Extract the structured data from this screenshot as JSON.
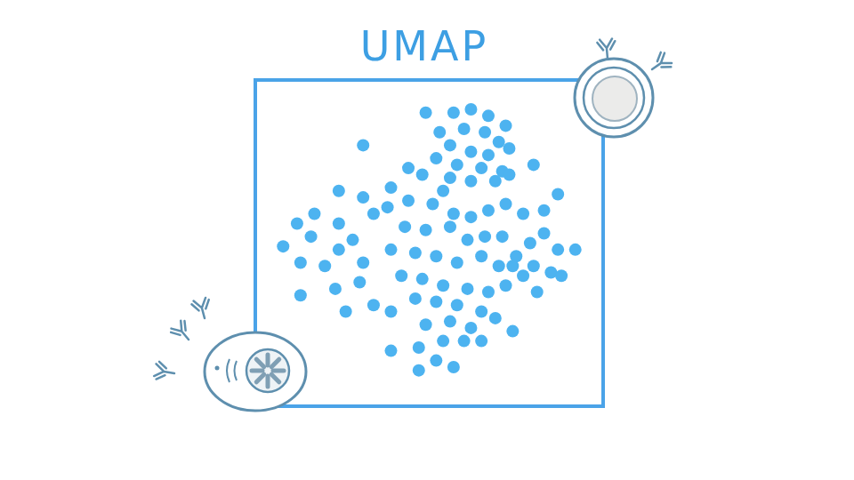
{
  "chart_data": {
    "type": "scatter",
    "title": "UMAP",
    "x": [
      49,
      57,
      62,
      67,
      72,
      53,
      60,
      66,
      70,
      56,
      62,
      67,
      73,
      52,
      58,
      65,
      71,
      80,
      56,
      62,
      69,
      73,
      31,
      24,
      31,
      39,
      44,
      48,
      54,
      34,
      17,
      12,
      8,
      16,
      24,
      28,
      13,
      20,
      24,
      31,
      13,
      23,
      30,
      26,
      34,
      39,
      38,
      44,
      51,
      57,
      62,
      67,
      72,
      77,
      83,
      87,
      43,
      49,
      56,
      61,
      66,
      71,
      39,
      46,
      52,
      58,
      65,
      70,
      75,
      42,
      48,
      54,
      61,
      67,
      72,
      46,
      52,
      58,
      65,
      49,
      56,
      62,
      69,
      74,
      39,
      47,
      54,
      60,
      65,
      47,
      57,
      52,
      79,
      83,
      87,
      92,
      80,
      85,
      77,
      81,
      88,
      74
    ],
    "values": [
      90,
      90,
      91,
      89,
      86,
      84,
      85,
      84,
      81,
      80,
      78,
      77,
      79,
      76,
      74,
      73,
      72,
      74,
      70,
      69,
      69,
      71,
      80,
      66,
      64,
      67,
      73,
      71,
      66,
      59,
      59,
      56,
      49,
      52,
      56,
      51,
      44,
      43,
      48,
      44,
      34,
      36,
      38,
      29,
      31,
      29,
      61,
      63,
      62,
      59,
      58,
      60,
      62,
      59,
      60,
      65,
      55,
      54,
      55,
      51,
      52,
      52,
      48,
      47,
      46,
      44,
      46,
      43,
      46,
      40,
      39,
      37,
      36,
      35,
      37,
      33,
      32,
      31,
      29,
      25,
      26,
      24,
      27,
      23,
      17,
      18,
      20,
      20,
      20,
      11,
      12,
      14,
      50,
      53,
      48,
      48,
      43,
      41,
      40,
      35,
      40,
      43
    ],
    "color": "#4db3f0",
    "xlim": [
      0,
      100
    ],
    "ylim": [
      0,
      100
    ],
    "grid": false,
    "tick_labels": false
  }
}
